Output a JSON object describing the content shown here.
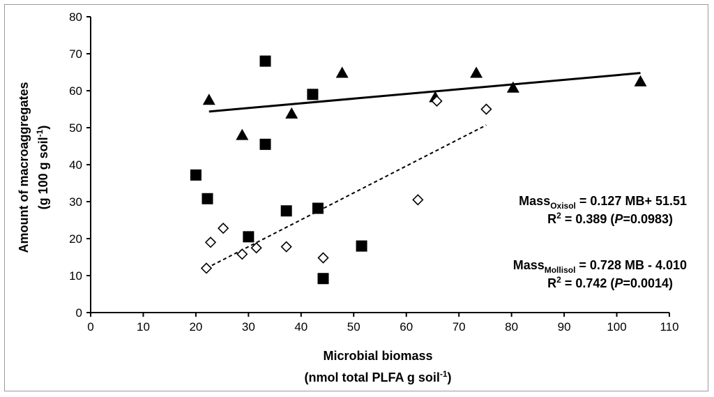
{
  "chart_data": {
    "type": "scatter",
    "xlabel": {
      "line1": "Microbial biomass",
      "line2_main": "(nmol total PLFA g soil",
      "line2_sup": "-1",
      "line2_end": ")"
    },
    "ylabel": {
      "line1": "Amount of macroaggregates",
      "line2_main": "(g 100 g soil",
      "line2_sup": "-1",
      "line2_end": ")"
    },
    "xlim": [
      0,
      110
    ],
    "ylim": [
      0,
      80
    ],
    "xticks": [
      0,
      10,
      20,
      30,
      40,
      50,
      60,
      70,
      80,
      90,
      100,
      110
    ],
    "yticks": [
      0,
      10,
      20,
      30,
      40,
      50,
      60,
      70,
      80
    ],
    "grid": false,
    "series": [
      {
        "marker": "filled-triangle",
        "color": "#000000",
        "points": [
          [
            22.5,
            57.5
          ],
          [
            28.8,
            48
          ],
          [
            38.2,
            53.8
          ],
          [
            47.8,
            64.8
          ],
          [
            65.5,
            58.2
          ],
          [
            73.3,
            64.8
          ],
          [
            80.3,
            60.8
          ],
          [
            104.5,
            62.5
          ]
        ]
      },
      {
        "marker": "filled-square",
        "color": "#000000",
        "points": [
          [
            33.2,
            68
          ],
          [
            42.2,
            59
          ],
          [
            33.2,
            45.5
          ],
          [
            20,
            37.2
          ],
          [
            22.2,
            30.8
          ],
          [
            37.2,
            27.5
          ],
          [
            43.2,
            28.2
          ],
          [
            30,
            20.5
          ],
          [
            51.5,
            18
          ],
          [
            44.2,
            9.2
          ]
        ]
      },
      {
        "marker": "open-diamond",
        "color": "#000000",
        "points": [
          [
            75.2,
            55
          ],
          [
            65.8,
            57.2
          ],
          [
            62.2,
            30.5
          ],
          [
            25.2,
            22.8
          ],
          [
            22.8,
            19
          ],
          [
            31.5,
            17.5
          ],
          [
            37.2,
            17.8
          ],
          [
            28.8,
            15.8
          ],
          [
            44.2,
            14.8
          ],
          [
            22,
            12
          ]
        ]
      }
    ],
    "fit_lines": [
      {
        "style": "solid",
        "x": [
          22.5,
          104.5
        ],
        "y": [
          54.37,
          64.78
        ]
      },
      {
        "style": "dashed",
        "x": [
          22,
          75.2
        ],
        "y": [
          12.0,
          50.7
        ]
      }
    ],
    "annotations": [
      {
        "line1": {
          "pre": "Mass",
          "sub": "Oxisol",
          "post": " = 0.127 MB+ 51.51"
        },
        "line2": {
          "pre": "R",
          "sup": "2",
          "mid": " = 0.389 (",
          "ital": "P",
          "post": "=0.0983)"
        }
      },
      {
        "line1": {
          "pre": "Mass",
          "sub": "Mollisol",
          "post": " = 0.728 MB - 4.010"
        },
        "line2": {
          "pre": "R",
          "sup": "2",
          "mid": " = 0.742 (",
          "ital": "P",
          "post": "=0.0014)"
        }
      }
    ]
  }
}
